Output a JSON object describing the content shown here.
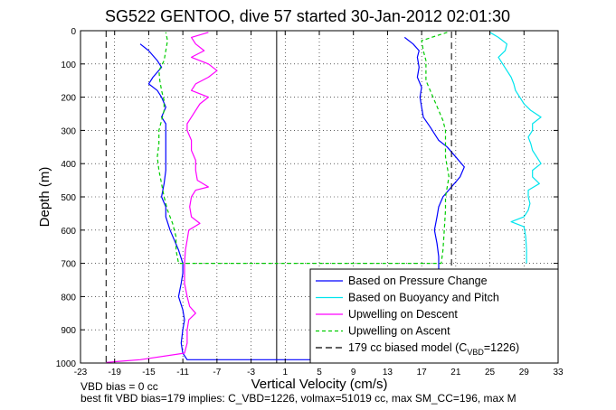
{
  "chart_data": {
    "type": "line",
    "title": "SG522 GENTOO, dive 57 started 30-Jan-2012 02:01:30",
    "xlabel": "Vertical Velocity (cm/s)",
    "ylabel": "Depth (m)",
    "xlim": [
      -23,
      33
    ],
    "ylim": [
      1000,
      0
    ],
    "y_reversed": true,
    "grid": true,
    "xticks": [
      -23,
      -19,
      -15,
      -11,
      -7,
      -3,
      1,
      5,
      9,
      13,
      17,
      21,
      25,
      29,
      33
    ],
    "yticks": [
      0,
      100,
      200,
      300,
      400,
      500,
      600,
      700,
      800,
      900,
      1000
    ],
    "legend_position": "bottom-right",
    "series": [
      {
        "name": "Based on Pressure Change",
        "color": "#0000ff",
        "style": "solid",
        "points": [
          [
            -16,
            40
          ],
          [
            -15,
            60
          ],
          [
            -14,
            90
          ],
          [
            -13.5,
            110
          ],
          [
            -14.5,
            140
          ],
          [
            -15,
            160
          ],
          [
            -14,
            180
          ],
          [
            -13.5,
            200
          ],
          [
            -13,
            230
          ],
          [
            -13.5,
            260
          ],
          [
            -13,
            280
          ],
          [
            -13,
            310
          ],
          [
            -13,
            350
          ],
          [
            -13,
            380
          ],
          [
            -13,
            420
          ],
          [
            -13.2,
            460
          ],
          [
            -13.5,
            500
          ],
          [
            -13,
            530
          ],
          [
            -13,
            560
          ],
          [
            -12.5,
            600
          ],
          [
            -12,
            630
          ],
          [
            -11.5,
            660
          ],
          [
            -11,
            700
          ],
          [
            -11,
            730
          ],
          [
            -11.2,
            760
          ],
          [
            -11.5,
            800
          ],
          [
            -11,
            840
          ],
          [
            -10.8,
            870
          ],
          [
            -11,
            900
          ],
          [
            -11.2,
            940
          ],
          [
            -11,
            970
          ],
          [
            -10.5,
            990
          ],
          [
            17.5,
            990
          ],
          [
            17.5,
            950
          ],
          [
            17.7,
            900
          ],
          [
            18,
            860
          ],
          [
            18.2,
            820
          ],
          [
            18.5,
            790
          ],
          [
            18.7,
            760
          ],
          [
            19,
            720
          ],
          [
            19,
            680
          ],
          [
            18.8,
            640
          ],
          [
            18.5,
            600
          ],
          [
            18.8,
            560
          ],
          [
            19,
            530
          ],
          [
            19.5,
            500
          ],
          [
            20.5,
            470
          ],
          [
            21.5,
            440
          ],
          [
            22,
            410
          ],
          [
            21,
            380
          ],
          [
            20,
            350
          ],
          [
            19,
            330
          ],
          [
            18.5,
            310
          ],
          [
            18,
            290
          ],
          [
            17.2,
            260
          ],
          [
            17,
            230
          ],
          [
            16.8,
            200
          ],
          [
            17,
            170
          ],
          [
            16.5,
            140
          ],
          [
            16.7,
            110
          ],
          [
            16.5,
            80
          ],
          [
            16.7,
            60
          ],
          [
            16,
            40
          ],
          [
            15,
            20
          ]
        ]
      },
      {
        "name": "Based on Buoyancy and Pitch",
        "color": "#00e5ee",
        "style": "solid",
        "points": [
          [
            25,
            5
          ],
          [
            26,
            20
          ],
          [
            27,
            40
          ],
          [
            26.8,
            60
          ],
          [
            26,
            80
          ],
          [
            26.5,
            100
          ],
          [
            27,
            120
          ],
          [
            27.5,
            140
          ],
          [
            27.8,
            160
          ],
          [
            28,
            180
          ],
          [
            28.5,
            200
          ],
          [
            29,
            220
          ],
          [
            29.8,
            240
          ],
          [
            31,
            260
          ],
          [
            30,
            280
          ],
          [
            30,
            300
          ],
          [
            29.5,
            320
          ],
          [
            29.8,
            340
          ],
          [
            30,
            360
          ],
          [
            30.5,
            380
          ],
          [
            31,
            400
          ],
          [
            30,
            420
          ],
          [
            30,
            440
          ],
          [
            30.8,
            460
          ],
          [
            29.5,
            480
          ],
          [
            29.5,
            500
          ],
          [
            29.7,
            520
          ],
          [
            29.5,
            540
          ],
          [
            29,
            560
          ],
          [
            27.5,
            575
          ],
          [
            29,
            590
          ],
          [
            29.2,
            620
          ],
          [
            29.3,
            660
          ],
          [
            29.3,
            700
          ]
        ]
      },
      {
        "name": "Upwelling on Descent",
        "color": "#ff00ff",
        "style": "solid",
        "points": [
          [
            -8,
            5
          ],
          [
            -10,
            20
          ],
          [
            -9.5,
            40
          ],
          [
            -8.5,
            60
          ],
          [
            -10,
            80
          ],
          [
            -8,
            100
          ],
          [
            -7,
            120
          ],
          [
            -8,
            140
          ],
          [
            -9.5,
            160
          ],
          [
            -10,
            180
          ],
          [
            -8,
            200
          ],
          [
            -9,
            220
          ],
          [
            -9.5,
            240
          ],
          [
            -10,
            260
          ],
          [
            -10.5,
            280
          ],
          [
            -10.5,
            300
          ],
          [
            -10,
            330
          ],
          [
            -10,
            360
          ],
          [
            -9.5,
            390
          ],
          [
            -9.5,
            420
          ],
          [
            -9.3,
            450
          ],
          [
            -8,
            470
          ],
          [
            -9.5,
            480
          ],
          [
            -10,
            500
          ],
          [
            -10.2,
            530
          ],
          [
            -10,
            560
          ],
          [
            -9,
            580
          ],
          [
            -10.3,
            600
          ],
          [
            -10.5,
            630
          ],
          [
            -10.7,
            660
          ],
          [
            -10.8,
            700
          ],
          [
            -10.8,
            730
          ],
          [
            -10.8,
            760
          ],
          [
            -10.5,
            800
          ],
          [
            -10.2,
            830
          ],
          [
            -9.5,
            850
          ],
          [
            -10.3,
            870
          ],
          [
            -10.5,
            900
          ],
          [
            -10.5,
            940
          ],
          [
            -10.8,
            970
          ],
          [
            -16,
            990
          ],
          [
            -20,
            998
          ]
        ]
      },
      {
        "name": "Upwelling on Ascent",
        "color": "#00cc00",
        "style": "dashed",
        "points": [
          [
            20,
            5
          ],
          [
            17,
            30
          ],
          [
            17.2,
            60
          ],
          [
            17.5,
            90
          ],
          [
            17.5,
            120
          ],
          [
            17.5,
            150
          ],
          [
            18,
            180
          ],
          [
            18.5,
            210
          ],
          [
            19,
            240
          ],
          [
            19.5,
            270
          ],
          [
            19.8,
            300
          ],
          [
            19.8,
            340
          ],
          [
            19.8,
            380
          ],
          [
            20,
            410
          ],
          [
            20.2,
            440
          ],
          [
            20,
            470
          ],
          [
            19.8,
            500
          ],
          [
            19.8,
            540
          ],
          [
            19.7,
            580
          ],
          [
            19.6,
            620
          ],
          [
            19.5,
            660
          ],
          [
            19.3,
            700
          ],
          [
            -11.5,
            700
          ],
          [
            -11.8,
            660
          ],
          [
            -11.8,
            620
          ],
          [
            -12.2,
            580
          ],
          [
            -12.8,
            540
          ],
          [
            -13.2,
            500
          ],
          [
            -13.5,
            460
          ],
          [
            -13.8,
            420
          ],
          [
            -14,
            380
          ],
          [
            -13.8,
            340
          ],
          [
            -13.8,
            300
          ],
          [
            -13.5,
            270
          ],
          [
            -13.2,
            240
          ],
          [
            -13.2,
            210
          ],
          [
            -13.5,
            180
          ],
          [
            -13.7,
            150
          ],
          [
            -13.8,
            120
          ],
          [
            -13.2,
            90
          ],
          [
            -13,
            60
          ],
          [
            -12.8,
            30
          ],
          [
            -13,
            5
          ]
        ]
      },
      {
        "name": "179 cc biased model (C_VBD=1226)",
        "color": "#000000",
        "style": "dashed",
        "points": [
          [
            -20,
            0
          ],
          [
            -20,
            1000
          ],
          [
            20.5,
            1000
          ],
          [
            20.5,
            0
          ]
        ]
      }
    ]
  },
  "notes": {
    "line1": "VBD bias = 0 cc",
    "line2": "best fit VBD bias=179 implies: C_VBD=1226, volmax=51019 cc, max SM_CC=196, max M"
  },
  "legend": {
    "items": [
      {
        "label": "Based on Pressure Change",
        "color": "#0000ff",
        "style": "solid"
      },
      {
        "label": "Based on Buoyancy and Pitch",
        "color": "#00e5ee",
        "style": "solid"
      },
      {
        "label": "Upwelling on Descent",
        "color": "#ff00ff",
        "style": "solid"
      },
      {
        "label": "Upwelling on Ascent",
        "color": "#00cc00",
        "style": "dashed"
      },
      {
        "label": "179 cc biased model (C",
        "sub": "VBD",
        "suffix": "=1226)",
        "color": "#000000",
        "style": "dashed"
      }
    ]
  }
}
